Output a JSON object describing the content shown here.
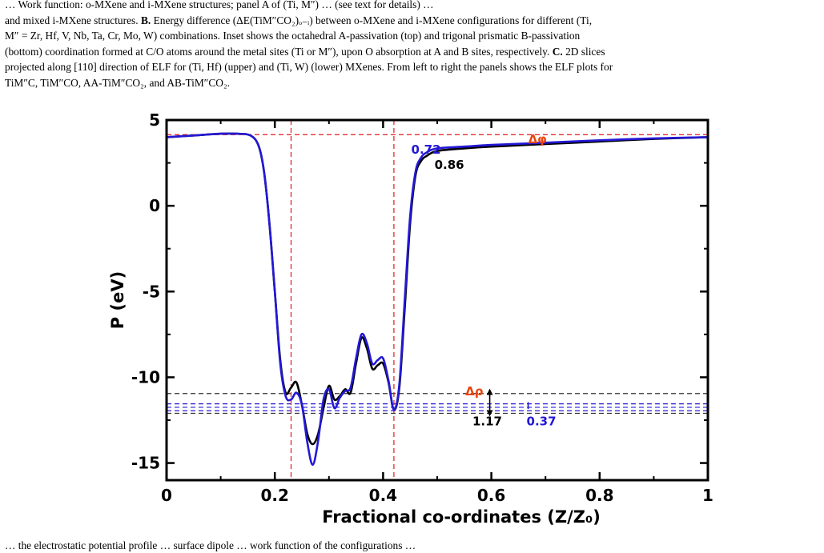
{
  "caption": {
    "line1": "… Work function: o-MXene and i-MXene structures; panel A of (Ti, M″) … (see text for details) …",
    "line2_pre": "and mixed i-MXene structures. ",
    "label_b": "B.",
    "line2_post": " Energy difference (ΔE(TiM″CO₂)ₒ₋ᵢ) between o-MXene and i-MXene configurations for different (Ti,",
    "line3": "M″ = Zr, Hf, V, Nb, Ta, Cr, Mo, W) combinations.  Inset shows the octahedral A-passivation (top) and trigonal prismatic B-passivation",
    "line4": "(bottom) coordination formed at C/O atoms around the metal sites (Ti or M″), upon O absorption at A and B sites, respectively. ",
    "label_c": "C.",
    "line4_post": " 2D slices",
    "line5": "projected along [110] direction of ELF for (Ti, Hf) (upper) and (Ti, W) (lower) MXenes. From left to right the panels shows the ELF plots for",
    "line6": "TiM″C, TiM″CO, AA-TiM″CO₂, and AB-TiM″CO₂."
  },
  "footer": "… the electrostatic potential profile … surface dipole … work function of the configurations …",
  "chart_data": {
    "type": "line",
    "xlabel": "Fractional co-ordinates (Z/Z₀)",
    "ylabel": "P (eV)",
    "xlim": [
      0,
      1
    ],
    "ylim": [
      -16,
      5
    ],
    "xticks": [
      "0",
      "0.2",
      "0.4",
      "0.6",
      "0.8",
      "1"
    ],
    "xtick_values": [
      0,
      0.2,
      0.4,
      0.6,
      0.8,
      1
    ],
    "yticks": [
      "5",
      "0",
      "-5",
      "-10",
      "-15"
    ],
    "ytick_values": [
      5,
      0,
      -5,
      -10,
      -15
    ],
    "grid": false,
    "series": [
      {
        "color": "#000000",
        "x": [
          0,
          0.05,
          0.1,
          0.13,
          0.155,
          0.17,
          0.18,
          0.19,
          0.2,
          0.21,
          0.22,
          0.23,
          0.24,
          0.25,
          0.26,
          0.27,
          0.28,
          0.29,
          0.3,
          0.31,
          0.32,
          0.33,
          0.34,
          0.35,
          0.36,
          0.37,
          0.38,
          0.39,
          0.4,
          0.41,
          0.42,
          0.43,
          0.44,
          0.45,
          0.46,
          0.47,
          0.48,
          0.5,
          0.55,
          0.6,
          0.7,
          0.8,
          0.9,
          1.0
        ],
        "y": [
          4.0,
          4.1,
          4.2,
          4.2,
          4.1,
          3.5,
          2.0,
          -1.0,
          -5.0,
          -9.0,
          -10.9,
          -10.6,
          -10.3,
          -11.6,
          -13.3,
          -13.9,
          -13.3,
          -11.8,
          -10.5,
          -11.3,
          -11.1,
          -10.7,
          -10.9,
          -9.2,
          -7.7,
          -8.3,
          -9.5,
          -9.3,
          -9.2,
          -10.3,
          -11.9,
          -10.6,
          -6.0,
          -1.0,
          1.8,
          2.6,
          2.9,
          3.2,
          3.35,
          3.45,
          3.6,
          3.75,
          3.9,
          4.0
        ]
      },
      {
        "color": "#2318d6",
        "x": [
          0,
          0.05,
          0.1,
          0.13,
          0.155,
          0.17,
          0.18,
          0.19,
          0.2,
          0.21,
          0.22,
          0.23,
          0.24,
          0.25,
          0.26,
          0.27,
          0.28,
          0.29,
          0.3,
          0.31,
          0.32,
          0.33,
          0.34,
          0.35,
          0.36,
          0.37,
          0.38,
          0.39,
          0.4,
          0.41,
          0.42,
          0.43,
          0.44,
          0.45,
          0.46,
          0.47,
          0.48,
          0.5,
          0.55,
          0.6,
          0.7,
          0.8,
          0.9,
          1.0
        ],
        "y": [
          4.0,
          4.1,
          4.2,
          4.2,
          4.1,
          3.5,
          2.0,
          -1.0,
          -5.0,
          -9.2,
          -11.1,
          -11.3,
          -10.9,
          -11.6,
          -13.8,
          -15.1,
          -13.7,
          -11.3,
          -10.7,
          -11.8,
          -11.2,
          -10.8,
          -10.6,
          -8.9,
          -7.5,
          -8.0,
          -9.2,
          -9.0,
          -8.9,
          -10.2,
          -11.9,
          -10.4,
          -5.5,
          -0.6,
          2.0,
          2.8,
          3.1,
          3.35,
          3.45,
          3.55,
          3.68,
          3.82,
          3.93,
          4.0
        ]
      }
    ],
    "reference_lines": {
      "horizontal": [
        {
          "y": 4.15,
          "color": "#e31a1c"
        },
        {
          "y": -10.95,
          "color": "#333333"
        },
        {
          "y": -11.55,
          "color": "#2318d6"
        },
        {
          "y": -11.75,
          "color": "#2318d6"
        },
        {
          "y": -11.95,
          "color": "#2318d6"
        },
        {
          "y": -12.1,
          "color": "#333333"
        }
      ],
      "vertical": [
        {
          "x": 0.23,
          "color": "#e31a1c"
        },
        {
          "x": 0.42,
          "color": "#e31a1c"
        }
      ]
    },
    "annotations": [
      {
        "id": "dphi",
        "text": "Δφ",
        "x": 0.668,
        "y": 3.65,
        "color": "#e8450f"
      },
      {
        "id": "blue-072",
        "text": "0.72",
        "x": 0.452,
        "y": 3.05,
        "color": "#2318d6"
      },
      {
        "id": "black-086",
        "text": "0.86",
        "x": 0.495,
        "y": 2.15,
        "color": "#000000"
      },
      {
        "id": "drho",
        "text": "Δρ",
        "x": 0.552,
        "y": -11.05,
        "color": "#e8450f"
      },
      {
        "id": "black-117",
        "text": "1.17",
        "x": 0.565,
        "y": -12.8,
        "color": "#000000"
      },
      {
        "id": "blue-037",
        "text": "0.37",
        "x": 0.665,
        "y": -12.8,
        "color": "#2318d6"
      }
    ]
  }
}
